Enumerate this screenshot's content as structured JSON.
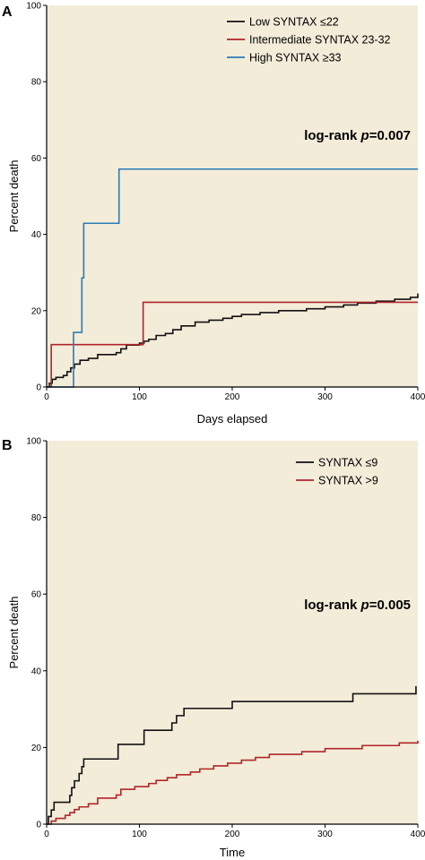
{
  "colors": {
    "background": "#f3ecd9",
    "axis": "#000000",
    "low": "#111111",
    "intermediate": "#b0262a",
    "high": "#2a7cb8"
  },
  "chart_data": [
    {
      "panel_label": "A",
      "type": "line",
      "step": true,
      "xlabel": "Days elapsed",
      "ylabel": "Percent death",
      "xlim": [
        0,
        400
      ],
      "ylim": [
        0,
        100
      ],
      "x_ticks": [
        0,
        100,
        200,
        300,
        400
      ],
      "y_ticks": [
        0,
        20,
        40,
        60,
        80,
        100
      ],
      "legend_position": "top-right",
      "annotation": {
        "prefix": "log-rank ",
        "p": "p",
        "suffix": "=0.007"
      },
      "series": [
        {
          "name": "Low SYNTAX ≤22",
          "color": "#111111",
          "points": [
            [
              0,
              0
            ],
            [
              3,
              1
            ],
            [
              6,
              2
            ],
            [
              10,
              2.5
            ],
            [
              18,
              3
            ],
            [
              22,
              4
            ],
            [
              26,
              5
            ],
            [
              30,
              6
            ],
            [
              36,
              7
            ],
            [
              45,
              7.5
            ],
            [
              55,
              8.5
            ],
            [
              75,
              9
            ],
            [
              80,
              10
            ],
            [
              86,
              11
            ],
            [
              100,
              11.5
            ],
            [
              105,
              12
            ],
            [
              110,
              12.5
            ],
            [
              118,
              13.5
            ],
            [
              128,
              14
            ],
            [
              136,
              15
            ],
            [
              145,
              16
            ],
            [
              160,
              17
            ],
            [
              175,
              17.5
            ],
            [
              190,
              18
            ],
            [
              200,
              18.5
            ],
            [
              210,
              19
            ],
            [
              230,
              19.5
            ],
            [
              250,
              20
            ],
            [
              280,
              20.5
            ],
            [
              300,
              21
            ],
            [
              320,
              21.5
            ],
            [
              335,
              22
            ],
            [
              355,
              22.5
            ],
            [
              375,
              23
            ],
            [
              392,
              23.5
            ],
            [
              400,
              24.5
            ]
          ]
        },
        {
          "name": "Intermediate SYNTAX 23-32",
          "color": "#b0262a",
          "points": [
            [
              0,
              0
            ],
            [
              5,
              0
            ],
            [
              5,
              11.1
            ],
            [
              104,
              11.1
            ],
            [
              104,
              22.2
            ],
            [
              400,
              22.2
            ]
          ]
        },
        {
          "name": "High SYNTAX ≥33",
          "color": "#2a7cb8",
          "points": [
            [
              0,
              0
            ],
            [
              29,
              0
            ],
            [
              29,
              14.3
            ],
            [
              38,
              14.3
            ],
            [
              38,
              28.6
            ],
            [
              40,
              28.6
            ],
            [
              40,
              42.9
            ],
            [
              78,
              42.9
            ],
            [
              78,
              57.1
            ],
            [
              400,
              57.1
            ]
          ]
        }
      ]
    },
    {
      "panel_label": "B",
      "type": "line",
      "step": true,
      "xlabel": "Time",
      "ylabel": "Percent death",
      "xlim": [
        0,
        400
      ],
      "ylim": [
        0,
        100
      ],
      "x_ticks": [
        0,
        100,
        200,
        300,
        400
      ],
      "y_ticks": [
        0,
        20,
        40,
        60,
        80,
        100
      ],
      "legend_position": "top-right",
      "annotation": {
        "prefix": "log-rank ",
        "p": "p",
        "suffix": "=0.005"
      },
      "series": [
        {
          "name": "SYNTAX ≤9",
          "color": "#111111",
          "points": [
            [
              0,
              0
            ],
            [
              2,
              2
            ],
            [
              5,
              3.7
            ],
            [
              8,
              5.7
            ],
            [
              25,
              5.7
            ],
            [
              25,
              7.5
            ],
            [
              27,
              9.5
            ],
            [
              30,
              11.3
            ],
            [
              35,
              13.2
            ],
            [
              38,
              15
            ],
            [
              40,
              17
            ],
            [
              77,
              17
            ],
            [
              77,
              20.8
            ],
            [
              105,
              20.8
            ],
            [
              105,
              24.5
            ],
            [
              135,
              24.5
            ],
            [
              135,
              26.4
            ],
            [
              140,
              28.3
            ],
            [
              148,
              30.2
            ],
            [
              200,
              30.2
            ],
            [
              200,
              32
            ],
            [
              330,
              32
            ],
            [
              330,
              34
            ],
            [
              398,
              34
            ],
            [
              398,
              36
            ]
          ]
        },
        {
          "name": "SYNTAX >9",
          "color": "#b0262a",
          "points": [
            [
              0,
              0
            ],
            [
              5,
              0.8
            ],
            [
              10,
              1.5
            ],
            [
              20,
              2.3
            ],
            [
              25,
              3
            ],
            [
              30,
              3.8
            ],
            [
              35,
              4.5
            ],
            [
              45,
              5.3
            ],
            [
              55,
              6.8
            ],
            [
              75,
              7.6
            ],
            [
              80,
              9.1
            ],
            [
              95,
              9.8
            ],
            [
              110,
              10.6
            ],
            [
              118,
              11.4
            ],
            [
              130,
              12.1
            ],
            [
              140,
              12.9
            ],
            [
              155,
              13.6
            ],
            [
              165,
              14.4
            ],
            [
              180,
              15.2
            ],
            [
              195,
              15.9
            ],
            [
              210,
              16.7
            ],
            [
              225,
              17.4
            ],
            [
              240,
              18.2
            ],
            [
              275,
              18.9
            ],
            [
              300,
              19.7
            ],
            [
              340,
              20.5
            ],
            [
              380,
              21.2
            ],
            [
              400,
              21.8
            ]
          ]
        }
      ]
    }
  ]
}
